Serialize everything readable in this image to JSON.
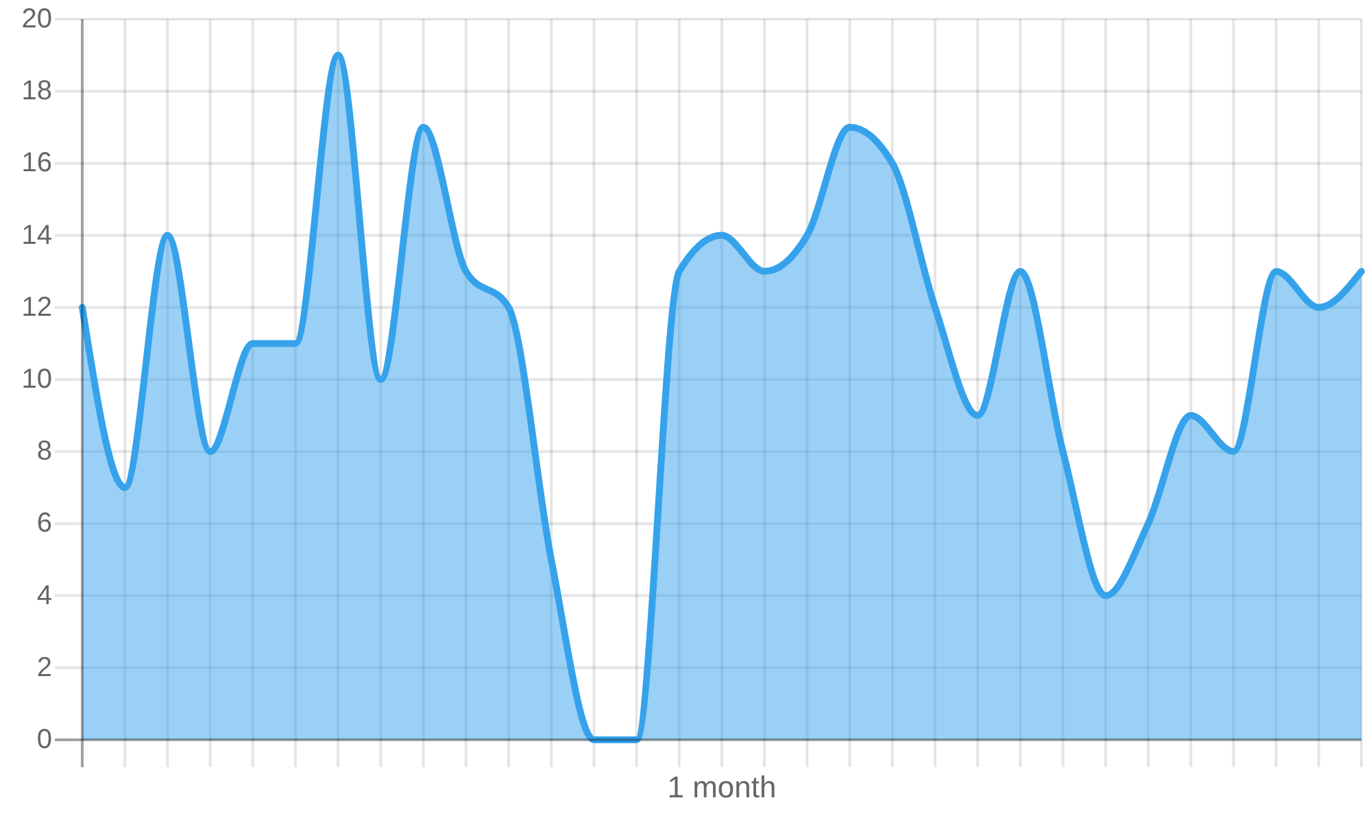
{
  "chart_data": {
    "type": "area",
    "xlabel": "1 month",
    "categories": [
      null,
      null,
      null,
      null,
      null,
      null,
      null,
      null,
      null,
      null,
      null,
      null,
      null,
      null,
      null,
      null,
      null,
      null,
      null,
      null,
      null,
      null,
      null,
      null,
      null,
      null,
      null,
      null,
      null,
      null,
      null
    ],
    "values": [
      12,
      7,
      14,
      8,
      11,
      11,
      19,
      10,
      17,
      13,
      12,
      5,
      0,
      0,
      13,
      14,
      13,
      14,
      17,
      16,
      12,
      9,
      13,
      8,
      4,
      6,
      9,
      8,
      13,
      12,
      13
    ],
    "color": "#36a2eb",
    "ylim": [
      0,
      20
    ],
    "yticks": [
      0,
      2,
      4,
      6,
      8,
      10,
      12,
      14,
      16,
      18,
      20
    ],
    "grid": true
  }
}
